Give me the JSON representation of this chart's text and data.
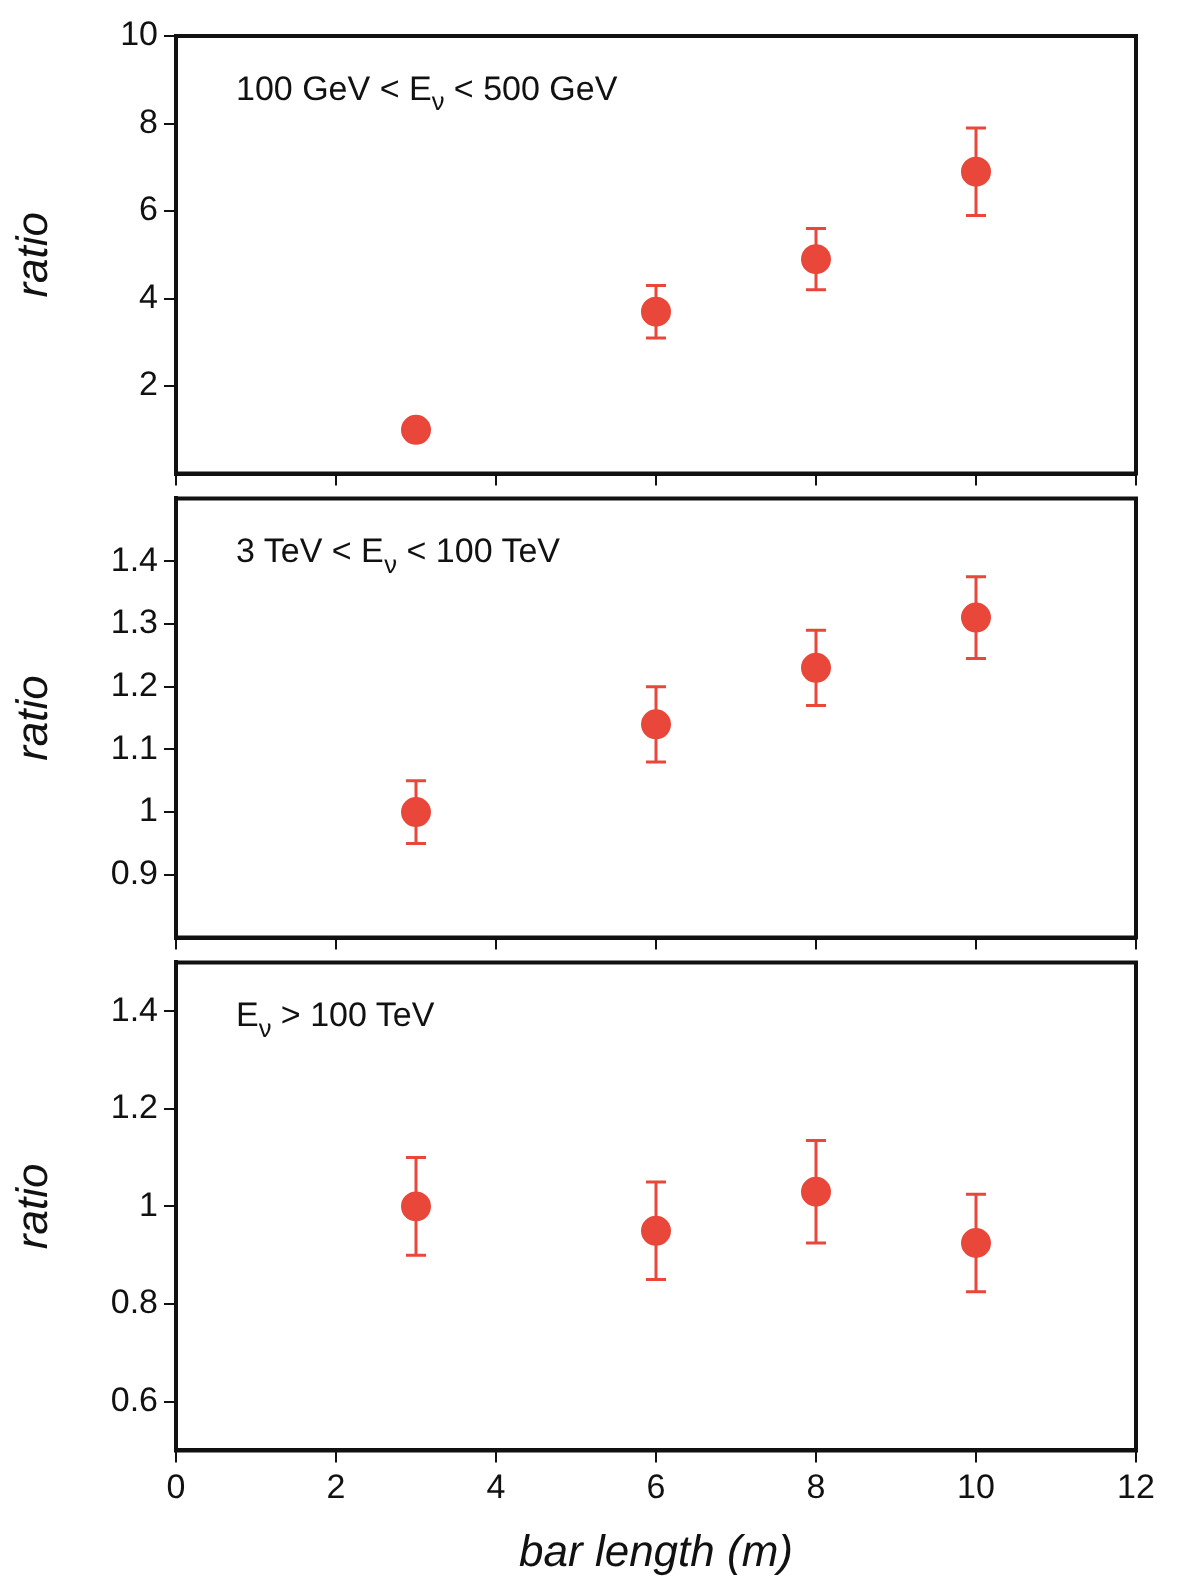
{
  "chart_data": [
    {
      "type": "scatter",
      "annotations": [
        "100 GeV < E$_{ν}$ < 500 GeV"
      ],
      "ylabel": "ratio",
      "x": [
        3,
        6,
        8,
        10
      ],
      "series": [
        {
          "color": "#e8473a",
          "values": [
            1.0,
            3.7,
            4.9,
            6.9
          ],
          "errors": [
            null,
            0.6,
            0.7,
            1.0
          ]
        }
      ],
      "xlim": [
        0,
        12
      ],
      "xticks": [
        0,
        2,
        4,
        6,
        8,
        10,
        12
      ],
      "ylim": [
        0,
        10
      ],
      "yticks": [
        2,
        4,
        6,
        8,
        10
      ],
      "tick_labels": "y",
      "marker": "circle"
    },
    {
      "type": "scatter",
      "annotations": [
        "3 TeV < E$_{ν}$ < 100 TeV"
      ],
      "ylabel": "ratio",
      "x": [
        3,
        6,
        8,
        10
      ],
      "series": [
        {
          "color": "#e8473a",
          "values": [
            1.0,
            1.14,
            1.23,
            1.31
          ],
          "errors": [
            0.05,
            0.06,
            0.06,
            0.065
          ]
        }
      ],
      "xlim": [
        0,
        12
      ],
      "xticks": [
        0,
        2,
        4,
        6,
        8,
        10,
        12
      ],
      "ylim": [
        0.8,
        1.5
      ],
      "yticks": [
        0.9,
        1,
        1.1,
        1.2,
        1.3,
        1.4
      ],
      "tick_labels": "y",
      "marker": "circle"
    },
    {
      "type": "scatter",
      "annotations": [
        "E$_{ν}$ > 100 TeV"
      ],
      "ylabel": "ratio",
      "xlabel": "bar length (m)",
      "x": [
        3,
        6,
        8,
        10
      ],
      "series": [
        {
          "color": "#e8473a",
          "values": [
            1.0,
            0.95,
            1.03,
            0.925
          ],
          "errors": [
            0.1,
            0.1,
            0.105,
            0.1
          ]
        }
      ],
      "xlim": [
        0,
        12
      ],
      "xticks": [
        0,
        2,
        4,
        6,
        8,
        10,
        12
      ],
      "ylim": [
        0.5,
        1.5
      ],
      "yticks": [
        0.6,
        0.8,
        1,
        1.2,
        1.4
      ],
      "marker": "circle"
    }
  ]
}
